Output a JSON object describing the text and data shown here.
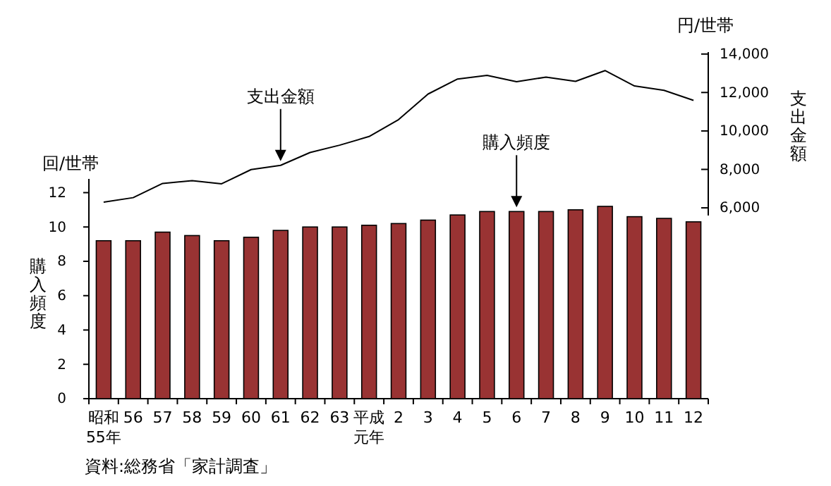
{
  "chart_data": [
    {
      "type": "line",
      "categories": [
        null,
        null,
        null,
        null,
        null,
        null,
        null,
        null,
        null,
        null,
        null,
        null,
        null,
        null,
        null,
        null,
        null,
        null,
        null,
        null,
        null
      ],
      "series": [
        {
          "name": "支出金額",
          "color": "#000000",
          "values": [
            6300,
            6530,
            7270,
            7410,
            7250,
            7990,
            8210,
            8880,
            9260,
            9710,
            10590,
            11920,
            12700,
            12890,
            12560,
            12800,
            12580,
            13140,
            12340,
            12110,
            11590
          ]
        }
      ],
      "ylabel": "支出金額",
      "ylim": [
        5600,
        14100
      ],
      "yticks": [
        {
          "value": 6000,
          "label": "6,000"
        },
        {
          "value": 8000,
          "label": "8,000"
        },
        {
          "value": 10000,
          "label": "10,000"
        },
        {
          "value": 12000,
          "label": "12,000"
        },
        {
          "value": 14000,
          "label": "14,000"
        }
      ],
      "annotations": [
        "円/世帯"
      ],
      "tick_labels": "y"
    },
    {
      "type": "bar",
      "categories": [
        "昭和55年",
        "56",
        "57",
        "58",
        "59",
        "60",
        "61",
        "62",
        "63",
        "平成元年",
        "2",
        "3",
        "4",
        "5",
        "6",
        "7",
        "8",
        "9",
        "10",
        "11",
        "12"
      ],
      "series": [
        {
          "name": "購入頻度",
          "color": "#993333",
          "values": [
            9.2,
            9.2,
            9.7,
            9.5,
            9.2,
            9.4,
            9.8,
            10.0,
            10.0,
            10.1,
            10.2,
            10.4,
            10.7,
            10.9,
            10.9,
            10.9,
            11.0,
            11.2,
            10.6,
            10.5,
            10.3
          ]
        }
      ],
      "ylabel": "購入頻度",
      "ylim": [
        0,
        12.8
      ],
      "yticks": [
        0,
        2,
        4,
        6,
        8,
        10,
        12
      ],
      "annotations": [
        "回/世帯",
        "資料:総務省「家計調査」"
      ]
    }
  ]
}
